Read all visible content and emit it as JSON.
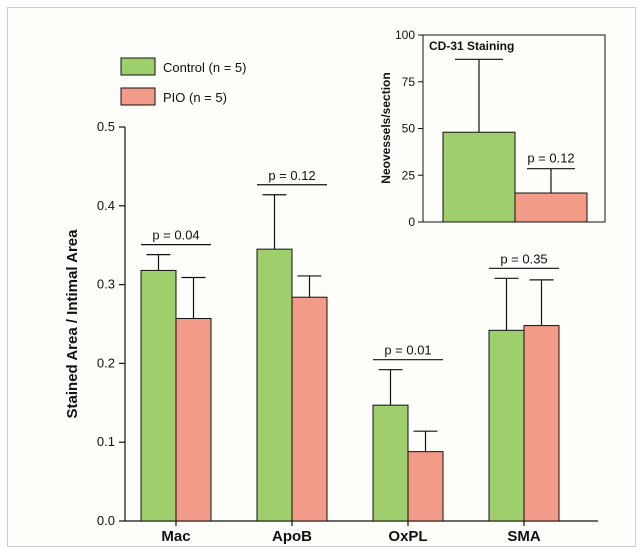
{
  "colors": {
    "control": "#9ecf6c",
    "pio": "#f29b88",
    "axis": "#111111"
  },
  "legend": {
    "control_label": "Control (n = 5)",
    "pio_label": "PIO (n = 5)"
  },
  "chart_data": [
    {
      "type": "bar",
      "ylabel": "Stained Area / Intimal Area",
      "ylim": [
        0,
        0.5
      ],
      "yticks": [
        "0.0",
        "0.1",
        "0.2",
        "0.3",
        "0.4",
        "0.5"
      ],
      "categories": [
        "Mac",
        "ApoB",
        "OxPL",
        "SMA"
      ],
      "series": [
        {
          "name": "Control (n = 5)",
          "values": [
            0.318,
            0.345,
            0.147,
            0.242
          ],
          "errors": [
            0.02,
            0.069,
            0.045,
            0.066
          ]
        },
        {
          "name": "PIO (n = 5)",
          "values": [
            0.257,
            0.284,
            0.088,
            0.248
          ],
          "errors": [
            0.052,
            0.027,
            0.026,
            0.058
          ]
        }
      ],
      "p_values": [
        "p = 0.04",
        "p = 0.12",
        "p = 0.01",
        "p = 0.35"
      ]
    },
    {
      "type": "bar",
      "title": "CD-31 Staining",
      "ylabel": "Neovessels/section",
      "ylim": [
        0,
        100
      ],
      "yticks": [
        "0",
        "25",
        "50",
        "75",
        "100"
      ],
      "categories": [
        ""
      ],
      "series": [
        {
          "name": "Control (n = 5)",
          "values": [
            48
          ],
          "errors": [
            39
          ]
        },
        {
          "name": "PIO (n = 5)",
          "values": [
            15.5
          ],
          "errors": [
            13
          ]
        }
      ],
      "p_values": [
        "p = 0.12"
      ]
    }
  ]
}
